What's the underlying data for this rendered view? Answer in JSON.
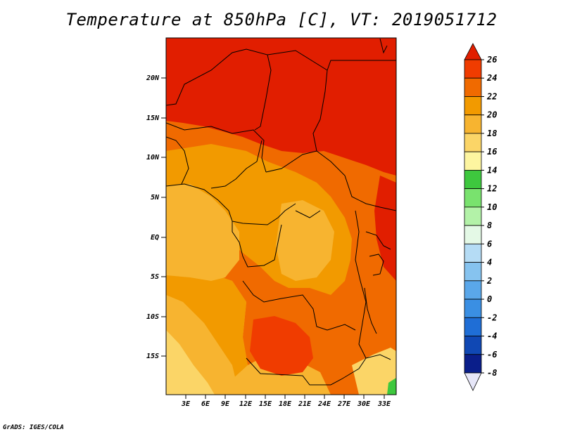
{
  "title": "Temperature at 850hPa [C], VT: 2019051712",
  "credit": "GrADS: IGES/COLA",
  "map": {
    "variable": "Temperature at 850hPa",
    "units": "C",
    "valid_time": "2019051712",
    "lat_ticks": [
      "20N",
      "15N",
      "10N",
      "5N",
      "EQ",
      "5S",
      "10S",
      "15S"
    ],
    "lon_ticks": [
      "3E",
      "6E",
      "9E",
      "12E",
      "15E",
      "18E",
      "21E",
      "24E",
      "27E",
      "30E",
      "33E"
    ]
  },
  "colorbar": {
    "labels": [
      "26",
      "24",
      "22",
      "20",
      "18",
      "16",
      "14",
      "12",
      "10",
      "8",
      "6",
      "4",
      "2",
      "0",
      "-2",
      "-4",
      "-6",
      "-8"
    ],
    "colors": [
      "#e11e00",
      "#f03c00",
      "#f06a00",
      "#f29a00",
      "#f7b430",
      "#fbd567",
      "#fdf5a0",
      "#3ec83e",
      "#79e26e",
      "#b3f2a8",
      "#e4f9e6",
      "#b5dcf5",
      "#86c3ef",
      "#5aa7ea",
      "#3a8fe3",
      "#1f6ed6",
      "#1048b4",
      "#0a1e8a",
      "#05106e"
    ],
    "over_color": "#e11e00",
    "under_color": "#e6e6f8"
  }
}
